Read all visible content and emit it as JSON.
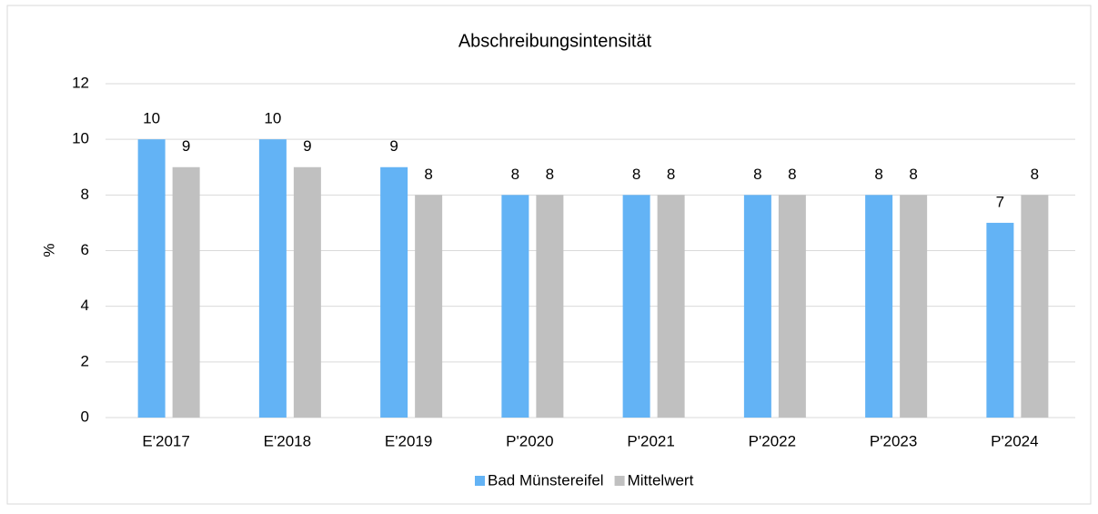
{
  "chart_data": {
    "type": "bar",
    "title": "Abschreibungsintensität",
    "ylabel": "%",
    "categories": [
      "E'2017",
      "E'2018",
      "E'2019",
      "P'2020",
      "P'2021",
      "P'2022",
      "P'2023",
      "P'2024"
    ],
    "series": [
      {
        "name": "Bad Münstereifel",
        "color": "#63b3f5",
        "values": [
          10,
          10,
          9,
          8,
          8,
          8,
          8,
          7
        ]
      },
      {
        "name": "Mittelwert",
        "color": "#c0c0c0",
        "values": [
          9,
          9,
          8,
          8,
          8,
          8,
          8,
          8
        ]
      }
    ],
    "ylim": [
      0,
      12
    ],
    "yticks": [
      0,
      2,
      4,
      6,
      8,
      10,
      12
    ],
    "grid": true,
    "legend": "bottom"
  }
}
